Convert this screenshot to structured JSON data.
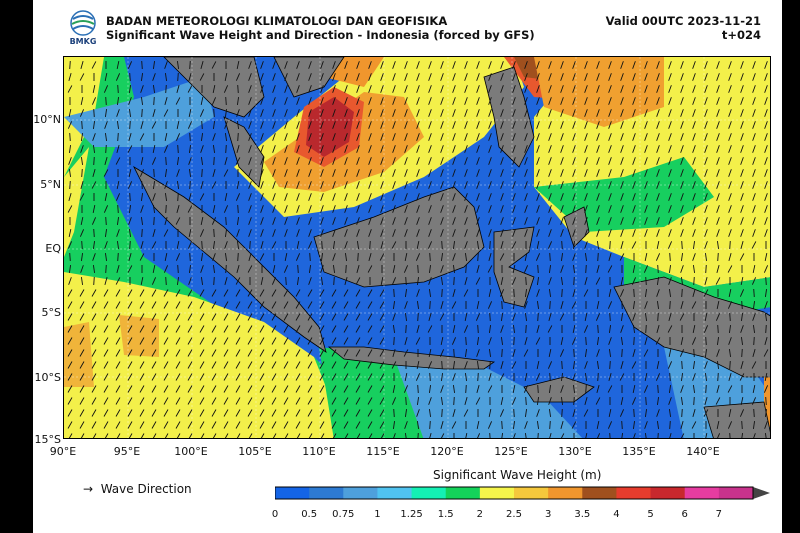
{
  "header": {
    "agency": "BADAN METEOROLOGI KLIMATOLOGI DAN GEOFISIKA",
    "product": "Significant Wave Height and Direction - Indonesia (forced by GFS)",
    "valid": "Valid 00UTC 2023-11-21",
    "lead": "t+024",
    "logo_text": "BMKG"
  },
  "axes": {
    "lat_labels": [
      "10°N",
      "5°N",
      "EQ",
      "5°S",
      "10°S",
      "15°S"
    ],
    "lon_labels": [
      "90°E",
      "95°E",
      "100°E",
      "105°E",
      "110°E",
      "115°E",
      "120°E",
      "125°E",
      "130°E",
      "135°E",
      "140°E"
    ]
  },
  "legend": {
    "arrow_label": "Wave Direction",
    "arrow_icon": "right-arrow-icon",
    "colorbar_title": "Significant Wave Height (m)",
    "levels": [
      "0",
      "0.5",
      "0.75",
      "1",
      "1.25",
      "1.5",
      "2",
      "2.5",
      "3",
      "3.5",
      "4",
      "5",
      "6",
      "7"
    ],
    "colors": [
      "#1464e6",
      "#2d7ad2",
      "#4ea0dc",
      "#50c3f0",
      "#14f0b4",
      "#14d25a",
      "#f5f54b",
      "#f5c83c",
      "#f0962d",
      "#a0501e",
      "#e63c2d",
      "#c8282d",
      "#e63ca0",
      "#c8328c"
    ]
  }
}
